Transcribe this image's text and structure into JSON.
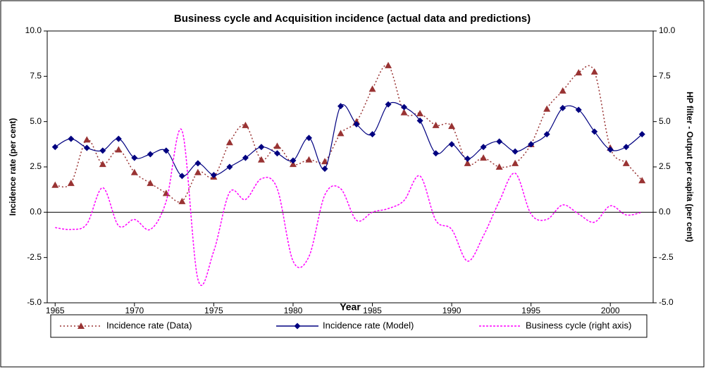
{
  "chart_data": {
    "type": "line",
    "title": "Business cycle and Acquisition incidence (actual data and predictions)",
    "x_label": "Year",
    "y_label": "Incidence rate (per cent)",
    "y2_label": "HP filter - Output per capita (per cent)",
    "x": [
      1965,
      1966,
      1967,
      1968,
      1969,
      1970,
      1971,
      1972,
      1973,
      1974,
      1975,
      1976,
      1977,
      1978,
      1979,
      1980,
      1981,
      1982,
      1983,
      1984,
      1985,
      1986,
      1987,
      1988,
      1989,
      1990,
      1991,
      1992,
      1993,
      1994,
      1995,
      1996,
      1997,
      1998,
      1999,
      2000,
      2001,
      2002
    ],
    "xlim": [
      1964.5,
      2002.7
    ],
    "xticks": [
      1965,
      1970,
      1975,
      1980,
      1985,
      1990,
      1995,
      2000
    ],
    "ylim": [
      -5,
      10
    ],
    "yticks": [
      {
        "value": -5,
        "label": "-5.0"
      },
      {
        "value": -2.5,
        "label": "-2.5"
      },
      {
        "value": 0,
        "label": "0.0"
      },
      {
        "value": 2.5,
        "label": "2.5"
      },
      {
        "value": 5,
        "label": "5.0"
      },
      {
        "value": 7.5,
        "label": "7.5"
      },
      {
        "value": 10,
        "label": "10.0"
      }
    ],
    "y2lim": [
      -5,
      10
    ],
    "y2ticks": [
      {
        "value": -5,
        "label": "-5.0"
      },
      {
        "value": -2.5,
        "label": "-2.5"
      },
      {
        "value": 0,
        "label": "0.0"
      },
      {
        "value": 2.5,
        "label": "2.5"
      },
      {
        "value": 5,
        "label": "5.0"
      },
      {
        "value": 7.5,
        "label": "7.5"
      },
      {
        "value": 10,
        "label": "10.0"
      }
    ],
    "legend": "bottom",
    "series": [
      {
        "name": "Incidence rate (Data)",
        "color": "#993333",
        "marker": "triangle",
        "dash": "dotted",
        "values": [
          1.5,
          1.6,
          4.0,
          2.65,
          3.45,
          2.2,
          1.6,
          1.05,
          0.6,
          2.2,
          1.95,
          3.85,
          4.8,
          2.9,
          3.65,
          2.65,
          2.9,
          2.8,
          4.35,
          5.0,
          6.8,
          8.1,
          5.5,
          5.45,
          4.8,
          4.75,
          2.7,
          3.0,
          2.5,
          2.7,
          3.75,
          5.7,
          6.7,
          7.7,
          7.75,
          3.55,
          2.7,
          1.75
        ]
      },
      {
        "name": "Incidence rate (Model)",
        "color": "#000080",
        "marker": "diamond",
        "dash": "solid",
        "values": [
          3.6,
          4.05,
          3.55,
          3.4,
          4.05,
          3.0,
          3.2,
          3.4,
          2.0,
          2.7,
          2.05,
          2.5,
          3.0,
          3.6,
          3.25,
          2.85,
          4.1,
          2.4,
          5.85,
          4.85,
          4.3,
          5.95,
          5.8,
          5.05,
          3.25,
          3.75,
          2.95,
          3.6,
          3.9,
          3.35,
          3.75,
          4.3,
          5.75,
          5.65,
          4.45,
          3.45,
          3.6,
          4.3
        ]
      },
      {
        "name": "Business cycle (right axis)",
        "color": "#FF00FF",
        "marker": "none",
        "dash": "dashed",
        "axis": "y2",
        "values": [
          -0.85,
          -0.95,
          -0.65,
          1.35,
          -0.75,
          -0.4,
          -0.95,
          0.6,
          4.5,
          -3.7,
          -2.15,
          1.1,
          0.7,
          1.85,
          1.3,
          -2.7,
          -2.45,
          0.95,
          1.3,
          -0.45,
          0.0,
          0.2,
          0.65,
          2.0,
          -0.45,
          -0.95,
          -2.7,
          -1.3,
          0.6,
          2.15,
          -0.1,
          -0.4,
          0.4,
          -0.1,
          -0.55,
          0.35,
          -0.15,
          0.0
        ]
      }
    ]
  }
}
